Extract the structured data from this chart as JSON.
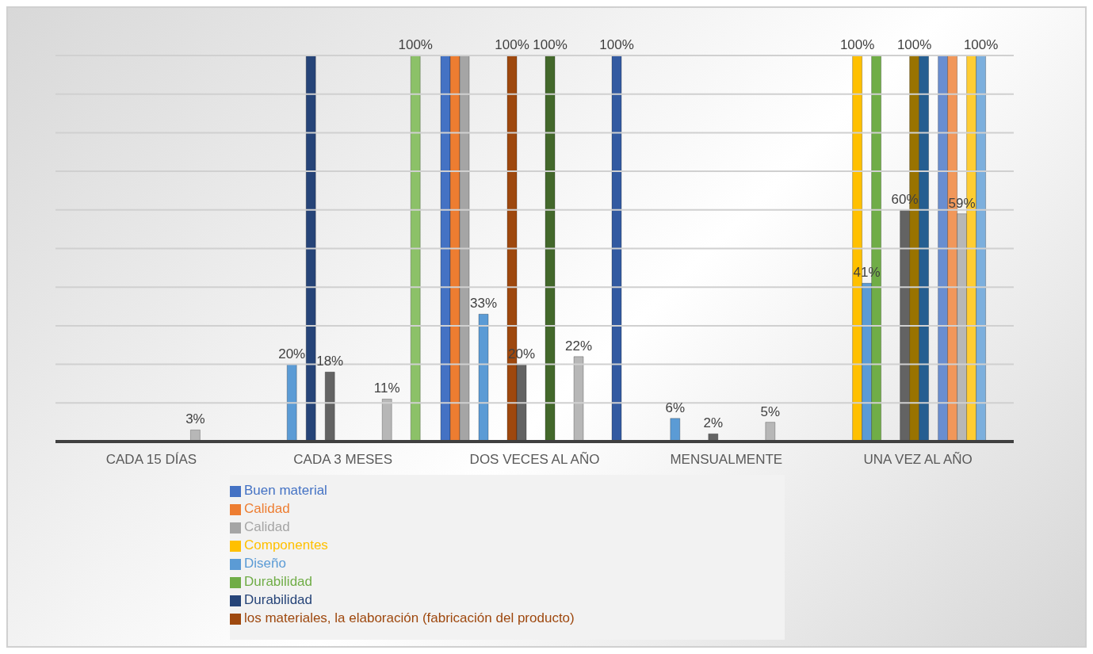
{
  "chart_data": {
    "type": "bar",
    "categories": [
      "CADA 15 DÍAS",
      "CADA 3 MESES",
      "DOS VECES AL AÑO",
      "MENSUALMENTE",
      "UNA VEZ AL AÑO"
    ],
    "series": [
      {
        "name": "Buen material",
        "color": "#4472c4",
        "values": [
          0,
          0,
          100,
          0,
          0
        ]
      },
      {
        "name": "Calidad",
        "color": "#ed7d31",
        "values": [
          0,
          0,
          100,
          0,
          0
        ]
      },
      {
        "name": "Calidad",
        "color": "#a5a5a5",
        "values": [
          0,
          0,
          100,
          0,
          0
        ]
      },
      {
        "name": "Componentes",
        "color": "#ffc000",
        "values": [
          0,
          0,
          0,
          0,
          100
        ],
        "value_labels": [
          null,
          null,
          null,
          null,
          "100%"
        ]
      },
      {
        "name": "Diseño",
        "color": "#5b9bd5",
        "values": [
          0,
          20,
          33,
          6,
          41
        ],
        "value_labels": [
          null,
          "20%",
          "33%",
          "6%",
          "41%"
        ]
      },
      {
        "name": "Durabilidad",
        "color": "#70ad47",
        "values": [
          0,
          0,
          0,
          0,
          100
        ]
      },
      {
        "name": "Durabilidad",
        "color": "#264478",
        "values": [
          0,
          100,
          0,
          0,
          0
        ]
      },
      {
        "name": "los materiales, la elaboración (fabricación del producto)",
        "color": "#9e480e",
        "values": [
          0,
          0,
          100,
          0,
          0
        ],
        "value_labels": [
          null,
          null,
          "100%",
          null,
          null
        ]
      },
      {
        "color": "#636363",
        "values": [
          0,
          18,
          20,
          2,
          60
        ],
        "value_labels": [
          null,
          "18%",
          "20%",
          "2%",
          "60%"
        ]
      },
      {
        "color": "#997300",
        "values": [
          0,
          0,
          0,
          0,
          100
        ],
        "value_labels": [
          null,
          null,
          null,
          null,
          "100%"
        ]
      },
      {
        "color": "#255e91",
        "values": [
          0,
          0,
          0,
          0,
          100
        ]
      },
      {
        "color": "#43682b",
        "values": [
          0,
          0,
          100,
          0,
          0
        ],
        "value_labels": [
          null,
          null,
          "100%",
          null,
          null
        ]
      },
      {
        "color": "#698ed0",
        "values": [
          0,
          0,
          0,
          0,
          100
        ]
      },
      {
        "color": "#f1975a",
        "values": [
          0,
          0,
          0,
          0,
          100
        ]
      },
      {
        "color": "#b7b7b7",
        "values": [
          3,
          11,
          22,
          5,
          59
        ],
        "value_labels": [
          "3%",
          "11%",
          "22%",
          "5%",
          "59%"
        ]
      },
      {
        "color": "#ffcd33",
        "values": [
          0,
          0,
          0,
          0,
          100
        ]
      },
      {
        "color": "#7cafdd",
        "values": [
          0,
          0,
          0,
          0,
          100
        ],
        "value_labels": [
          null,
          null,
          null,
          null,
          "100%"
        ]
      },
      {
        "color": "#8cc168",
        "values": [
          0,
          100,
          0,
          0,
          0
        ],
        "value_labels": [
          null,
          "100%",
          null,
          null,
          null
        ]
      },
      {
        "color": "#335aa1",
        "values": [
          0,
          0,
          100,
          0,
          0
        ],
        "value_labels": [
          null,
          null,
          "100%",
          null,
          null
        ]
      }
    ],
    "ylim": [
      0,
      100
    ],
    "yticks": [
      {
        "value": 0,
        "label": null
      },
      {
        "value": 10,
        "label": null
      },
      {
        "value": 20,
        "label": null
      },
      {
        "value": 30,
        "label": null
      },
      {
        "value": 40,
        "label": null
      },
      {
        "value": 50,
        "label": null
      },
      {
        "value": 60,
        "label": null
      },
      {
        "value": 70,
        "label": null
      },
      {
        "value": 80,
        "label": null
      },
      {
        "value": 90,
        "label": null
      },
      {
        "value": 100,
        "label": null
      }
    ],
    "tick_labels": "x",
    "grid": "y",
    "legend": "bottom"
  }
}
